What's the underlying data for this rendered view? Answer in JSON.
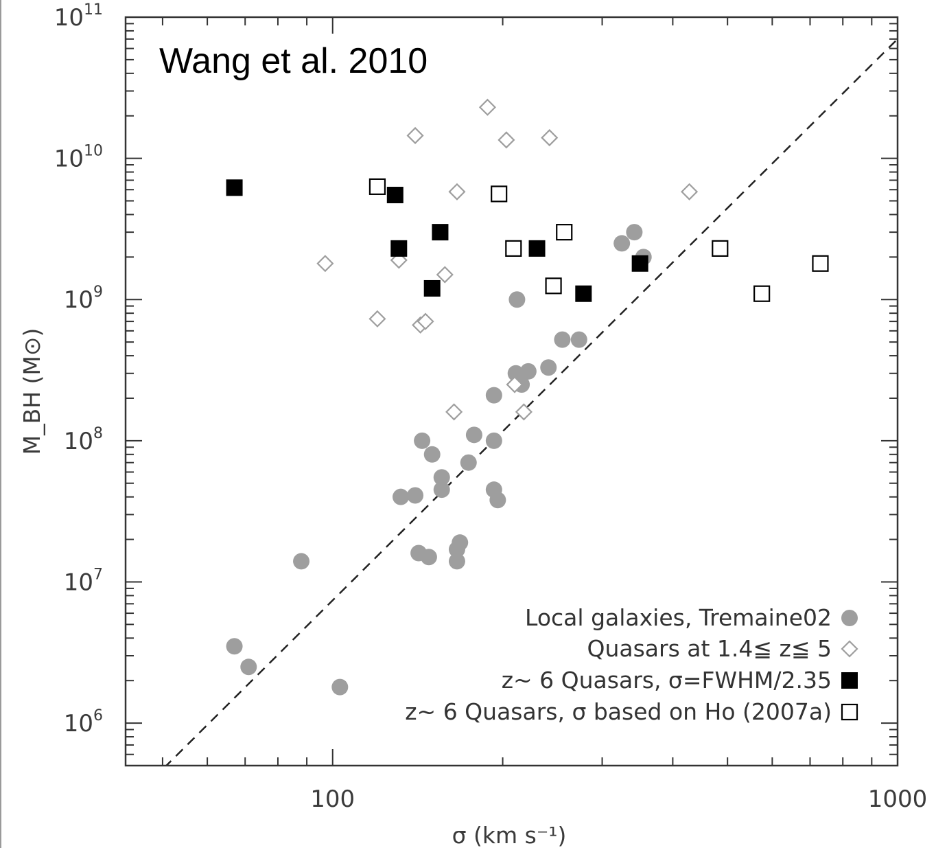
{
  "colors": {
    "local_galaxies": "#9e9e9e",
    "quasars_mid_z": "#9e9e9e",
    "z6_fwhm": "#000000",
    "z6_ho": "#000000",
    "annotation": "#e0200f",
    "axes": "#333333"
  },
  "icons": {
    "local_galaxies": "filled-circle",
    "quasars_mid_z": "open-diamond",
    "z6_fwhm": "filled-square",
    "z6_ho": "open-square"
  },
  "chart_data": {
    "type": "scatter",
    "title": "",
    "annotation": "Wang et al. 2010",
    "xlabel": "σ (km s⁻¹)",
    "ylabel": "M_BH (M⊙)",
    "xscale": "log",
    "yscale": "log",
    "xlim": [
      43,
      1000
    ],
    "ylim": [
      500000,
      100000000000
    ],
    "x_ticks": [
      {
        "value": 100,
        "label": "100"
      },
      {
        "value": 1000,
        "label": "1000"
      }
    ],
    "y_ticks": [
      {
        "value": 1000000,
        "base": "10",
        "exp": "6"
      },
      {
        "value": 10000000,
        "base": "10",
        "exp": "7"
      },
      {
        "value": 100000000,
        "base": "10",
        "exp": "8"
      },
      {
        "value": 1000000000,
        "base": "10",
        "exp": "9"
      },
      {
        "value": 10000000000,
        "base": "10",
        "exp": "10"
      },
      {
        "value": 100000000000,
        "base": "10",
        "exp": "11"
      }
    ],
    "grid": false,
    "legend_position": "bottom-right",
    "fit_line": {
      "style": "dashed",
      "x": [
        48,
        1000
      ],
      "y": [
        400000,
        70000000000
      ]
    },
    "series": [
      {
        "name": "Local galaxies, Tremaine02",
        "marker": "filled-circle",
        "points": [
          [
            67,
            3500000
          ],
          [
            71,
            2500000
          ],
          [
            88,
            14000000
          ],
          [
            103,
            1800000
          ],
          [
            132,
            40000000
          ],
          [
            140,
            41000000
          ],
          [
            142,
            16000000
          ],
          [
            148,
            15000000
          ],
          [
            144,
            100000000
          ],
          [
            150,
            80000000
          ],
          [
            156,
            55000000
          ],
          [
            156,
            45000000
          ],
          [
            166,
            17000000
          ],
          [
            166,
            14000000
          ],
          [
            168,
            19000000
          ],
          [
            174,
            70000000
          ],
          [
            178,
            110000000
          ],
          [
            193,
            210000000
          ],
          [
            193,
            100000000
          ],
          [
            193,
            45000000
          ],
          [
            196,
            38000000
          ],
          [
            211,
            300000000
          ],
          [
            216,
            250000000
          ],
          [
            222,
            310000000
          ],
          [
            241,
            330000000
          ],
          [
            255,
            520000000
          ],
          [
            273,
            520000000
          ],
          [
            212,
            1000000000
          ],
          [
            325,
            2500000000
          ],
          [
            342,
            3000000000
          ],
          [
            355,
            2000000000
          ]
        ]
      },
      {
        "name": "Quasars at 1.4≦ z≦ 5",
        "marker": "open-diamond",
        "points": [
          [
            97,
            1800000000
          ],
          [
            120,
            730000000
          ],
          [
            131,
            1900000000
          ],
          [
            143,
            660000000
          ],
          [
            146,
            700000000
          ],
          [
            158,
            1500000000
          ],
          [
            140,
            14500000000
          ],
          [
            166,
            5800000000
          ],
          [
            188,
            23000000000
          ],
          [
            203,
            13500000000
          ],
          [
            242,
            14000000000
          ],
          [
            428,
            5800000000
          ],
          [
            210,
            250000000
          ],
          [
            218,
            160000000
          ],
          [
            164,
            160000000
          ]
        ]
      },
      {
        "name": "z~ 6 Quasars, σ=FWHM/2.35",
        "marker": "filled-square",
        "points": [
          [
            67,
            6200000000
          ],
          [
            129,
            5500000000
          ],
          [
            131,
            2300000000
          ],
          [
            150,
            1200000000
          ],
          [
            155,
            3000000000
          ],
          [
            230,
            2300000000
          ],
          [
            278,
            1100000000
          ],
          [
            350,
            1800000000
          ]
        ]
      },
      {
        "name": "z~ 6 Quasars, σ based on Ho (2007a)",
        "marker": "open-square",
        "points": [
          [
            120,
            6300000000
          ],
          [
            197,
            5600000000
          ],
          [
            209,
            2300000000
          ],
          [
            257,
            3000000000
          ],
          [
            246,
            1250000000
          ],
          [
            485,
            2300000000
          ],
          [
            575,
            1100000000
          ],
          [
            730,
            1800000000
          ]
        ]
      }
    ]
  }
}
